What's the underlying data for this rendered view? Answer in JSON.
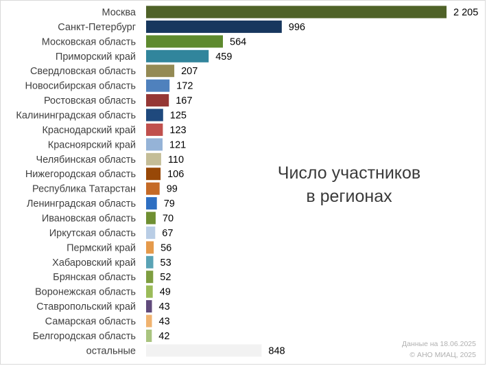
{
  "chart_data": {
    "type": "bar",
    "orientation": "horizontal",
    "title_lines": [
      "Число участников",
      "в регионах"
    ],
    "footnote_lines": [
      "Данные на 18.06.2025",
      "© АНО МИАЦ, 2025"
    ],
    "categories": [
      "Москва",
      "Санкт-Петербург",
      "Московская область",
      "Приморский край",
      "Свердловская область",
      "Новосибирская область",
      "Ростовская область",
      "Калининградская область",
      "Краснодарский край",
      "Красноярский край",
      "Челябинская область",
      "Нижегородская область",
      "Республика Татарстан",
      "Ленинградская область",
      "Ивановская область",
      "Иркутская область",
      "Пермский край",
      "Хабаровский край",
      "Брянская область",
      "Воронежская область",
      "Ставропольский край",
      "Самарская область",
      "Белгородская область",
      "остальные"
    ],
    "values": [
      2205,
      996,
      564,
      459,
      207,
      172,
      167,
      125,
      123,
      121,
      110,
      106,
      99,
      79,
      70,
      67,
      56,
      53,
      52,
      49,
      43,
      43,
      42,
      848
    ],
    "value_labels": [
      "2 205",
      "996",
      "564",
      "459",
      "207",
      "172",
      "167",
      "125",
      "123",
      "121",
      "110",
      "106",
      "99",
      "79",
      "70",
      "67",
      "56",
      "53",
      "52",
      "49",
      "43",
      "43",
      "42",
      "848"
    ],
    "colors": [
      "#4f6228",
      "#17375e",
      "#5e8a2e",
      "#31859c",
      "#948a54",
      "#4f81bd",
      "#953735",
      "#1f497d",
      "#c0504d",
      "#95b3d7",
      "#c4bd97",
      "#984807",
      "#c56a26",
      "#2e6fc2",
      "#6f8f32",
      "#b9cde5",
      "#e59a4b",
      "#5aa3b5",
      "#7e9e40",
      "#9bbb59",
      "#604a7b",
      "#f0b36f",
      "#a9c47f",
      "#f2f2f2"
    ],
    "xlim": [
      0,
      2205
    ],
    "grid": false,
    "legend": "none"
  }
}
